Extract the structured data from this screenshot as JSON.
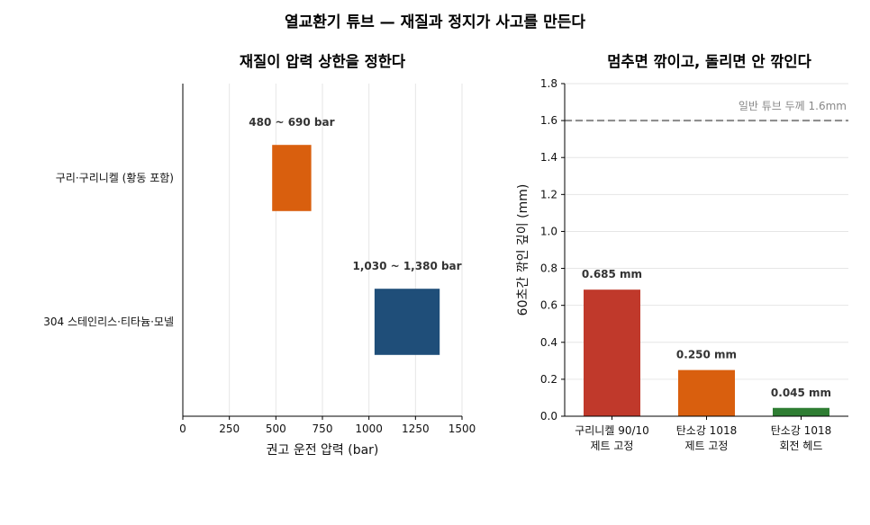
{
  "suptitle": "열교환기 튜브 — 재질과 정지가 사고를 만든다",
  "chart_data": [
    {
      "type": "bar",
      "orientation": "horizontal-range",
      "title": "재질이 압력 상한을 정한다",
      "xlabel": "권고 운전 압력 (bar)",
      "ylabel": "",
      "xlim": [
        0,
        1500
      ],
      "xticks": [
        0,
        250,
        500,
        750,
        1000,
        1250,
        1500
      ],
      "grid": "x",
      "categories": [
        "구리·구리니켈 (황동 포함)",
        "304 스테인리스·티타늄·모넬"
      ],
      "ranges": [
        [
          480,
          690
        ],
        [
          1030,
          1380
        ]
      ],
      "range_labels": [
        "480 ~ 690 bar",
        "1,030 ~ 1,380 bar"
      ],
      "colors": [
        "#d95f0e",
        "#1f4e79"
      ]
    },
    {
      "type": "bar",
      "title": "멈추면 깎이고, 돌리면 안 깎인다",
      "xlabel": "",
      "ylabel": "60초간 깎인 깊이 (mm)",
      "ylim": [
        0,
        1.8
      ],
      "yticks": [
        0.0,
        0.2,
        0.4,
        0.6,
        0.8,
        1.0,
        1.2,
        1.4,
        1.6,
        1.8
      ],
      "grid": "y",
      "categories": [
        [
          "구리니켈 90/10",
          "제트 고정"
        ],
        [
          "탄소강 1018",
          "제트 고정"
        ],
        [
          "탄소강 1018",
          "회전 헤드"
        ]
      ],
      "values": [
        0.685,
        0.25,
        0.045
      ],
      "value_labels": [
        "0.685 mm",
        "0.250 mm",
        "0.045 mm"
      ],
      "colors": [
        "#c0392b",
        "#d95f0e",
        "#2e7d32"
      ],
      "reference_line": {
        "value": 1.6,
        "label": "일반 튜브 두께 1.6mm",
        "color": "#888888",
        "style": "dashed"
      }
    }
  ]
}
